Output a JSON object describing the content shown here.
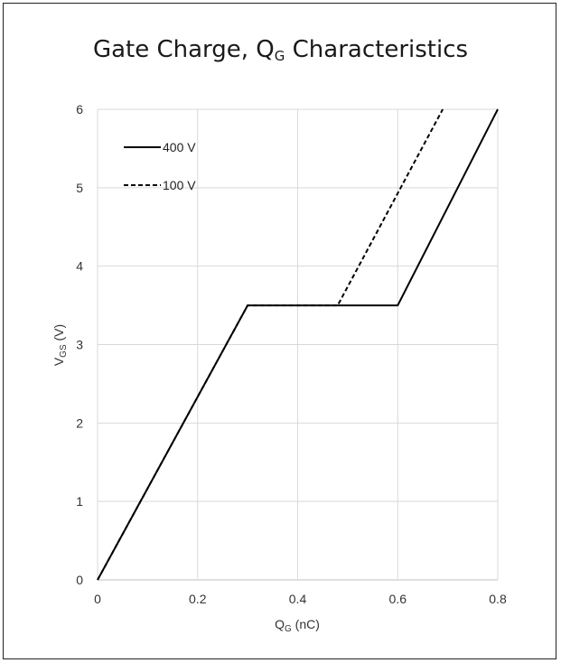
{
  "chart_data": {
    "type": "line",
    "title": "Gate Charge, Q",
    "title_sub": "G",
    "title_suffix": " Characteristics",
    "xlabel": "Q",
    "xlabel_sub": "G",
    "xlabel_suffix": " (nC)",
    "ylabel": "V",
    "ylabel_sub": "GS",
    "ylabel_suffix": " (V)",
    "xlim": [
      0,
      0.8
    ],
    "ylim": [
      0,
      6
    ],
    "x_ticks": [
      "0",
      "0.2",
      "0.4",
      "0.6",
      "0.8"
    ],
    "y_ticks": [
      "0",
      "1",
      "2",
      "3",
      "4",
      "5",
      "6"
    ],
    "grid": true,
    "legend_position": "top-left",
    "series": [
      {
        "name": "400 V",
        "style": "solid",
        "x": [
          0,
          0.3,
          0.6,
          0.8
        ],
        "y": [
          0,
          3.5,
          3.5,
          6
        ]
      },
      {
        "name": "100 V",
        "style": "dashed",
        "x": [
          0,
          0.3,
          0.48,
          0.69
        ],
        "y": [
          0,
          3.5,
          3.5,
          6
        ]
      }
    ],
    "colors": {
      "line": "#000000",
      "grid": "#d9d9d9"
    }
  }
}
